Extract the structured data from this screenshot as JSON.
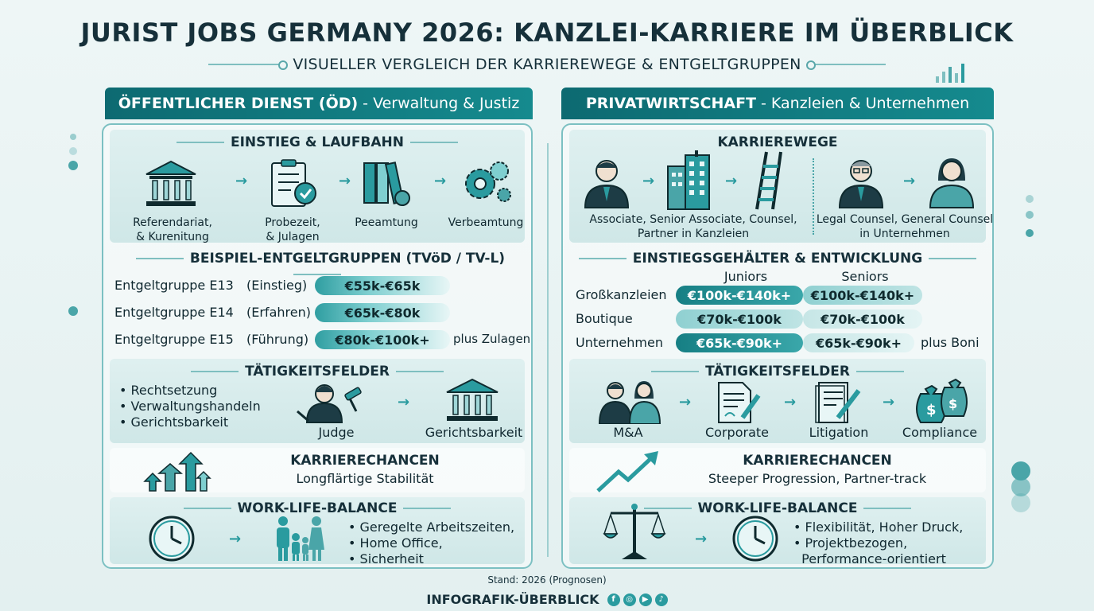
{
  "title": "JURIST JOBS GERMANY 2026: KANZLEI-KARRIERE IM ÜBERBLICK",
  "subtitle": "VISUELLER VERGLEICH DER KARRIEREWEGE & ENTGELTGRUPPEN",
  "left": {
    "head_bold": "ÖFFENTLICHER DIENST (ÖD)",
    "head_rest": "- Verwaltung & Justiz",
    "einstieg": {
      "title": "EINSTIEG & LAUFBAHN",
      "steps": [
        {
          "icon": "courthouse-icon",
          "label": "Referendariat,\n& Kurenitung"
        },
        {
          "icon": "clipboard-icon",
          "label": "Probezeit,\n& Julagen"
        },
        {
          "icon": "binders-icon",
          "label": "Peeamtung"
        },
        {
          "icon": "gears-icon",
          "label": "Verbeamtung"
        }
      ]
    },
    "entgelt": {
      "title": "BEISPIEL-ENTGELTGRUPPEN (TVöD / TV-L)",
      "rows": [
        {
          "group": "Entgeltgruppe E13",
          "level": "(Einstieg)",
          "range": "€55k-€65k"
        },
        {
          "group": "Entgeltgruppe E14",
          "level": "(Erfahren)",
          "range": "€65k-€80k"
        },
        {
          "group": "Entgeltgruppe E15",
          "level": "(Führung)",
          "range": "€80k-€100k+"
        }
      ],
      "note": "plus Zulagen"
    },
    "taetigkeit": {
      "title": "TÄTIGKEITSFELDER",
      "bullets": [
        "Rechtsetzung",
        "Verwaltungshandeln",
        "Gerichtsbarkeit"
      ],
      "items": [
        {
          "icon": "judge-icon",
          "label": "Judge"
        },
        {
          "icon": "courthouse-icon",
          "label": "Gerichtsbarkeit"
        }
      ]
    },
    "chancen": {
      "title": "KARRIERECHANCEN",
      "text": "Longflärtige Stabilität"
    },
    "wlb": {
      "title": "WORK-LIFE-BALANCE",
      "bullets": [
        "Geregelte Arbeitszeiten,",
        "Home Office,",
        "Sicherheit"
      ]
    }
  },
  "right": {
    "head_bold": "PRIVATWIRTSCHAFT",
    "head_rest": "- Kanzleien & Unternehmen",
    "wege": {
      "title": "KARRIEREWEGE",
      "label_a": "Associate,  Senior Associate,  Counsel,\nPartner in Kanzleien",
      "label_b": "Legal Counsel, General Counsel\nin Unternehmen"
    },
    "gehalt": {
      "title": "EINSTIEGSGEHÄLTER & ENTWICKLUNG",
      "col_juniors": "Juniors",
      "col_seniors": "Seniors",
      "rows": [
        {
          "label": "Großkanzleien",
          "juniors": "€100k-€140k+",
          "seniors": "€100k-€140k+"
        },
        {
          "label": "Boutique",
          "juniors": "€70k-€100k",
          "seniors": "€70k-€100k"
        },
        {
          "label": "Unternehmen",
          "juniors": "€65k-€90k+",
          "seniors": "€65k-€90k+"
        }
      ],
      "note": "plus Boni"
    },
    "taetigkeit": {
      "title": "TÄTIGKEITSFELDER",
      "items": [
        {
          "icon": "people-icon",
          "label": "M&A"
        },
        {
          "icon": "document-pen-icon",
          "label": "Corporate"
        },
        {
          "icon": "file-pen-icon",
          "label": "Litigation"
        },
        {
          "icon": "money-bags-icon",
          "label": "Compliance"
        }
      ]
    },
    "chancen": {
      "title": "KARRIERECHANCEN",
      "text": "Steeper Progression, Partner-track"
    },
    "wlb": {
      "title": "WORK-LIFE-BALANCE",
      "bullets": [
        "Flexibilität, Hoher Druck,",
        "Projektbezogen,",
        "Performance-orientiert"
      ]
    }
  },
  "footer": {
    "stand": "Stand: 2026 (Prognosen)",
    "brand": "INFOGRAFIK-ÜBERBLICK"
  }
}
